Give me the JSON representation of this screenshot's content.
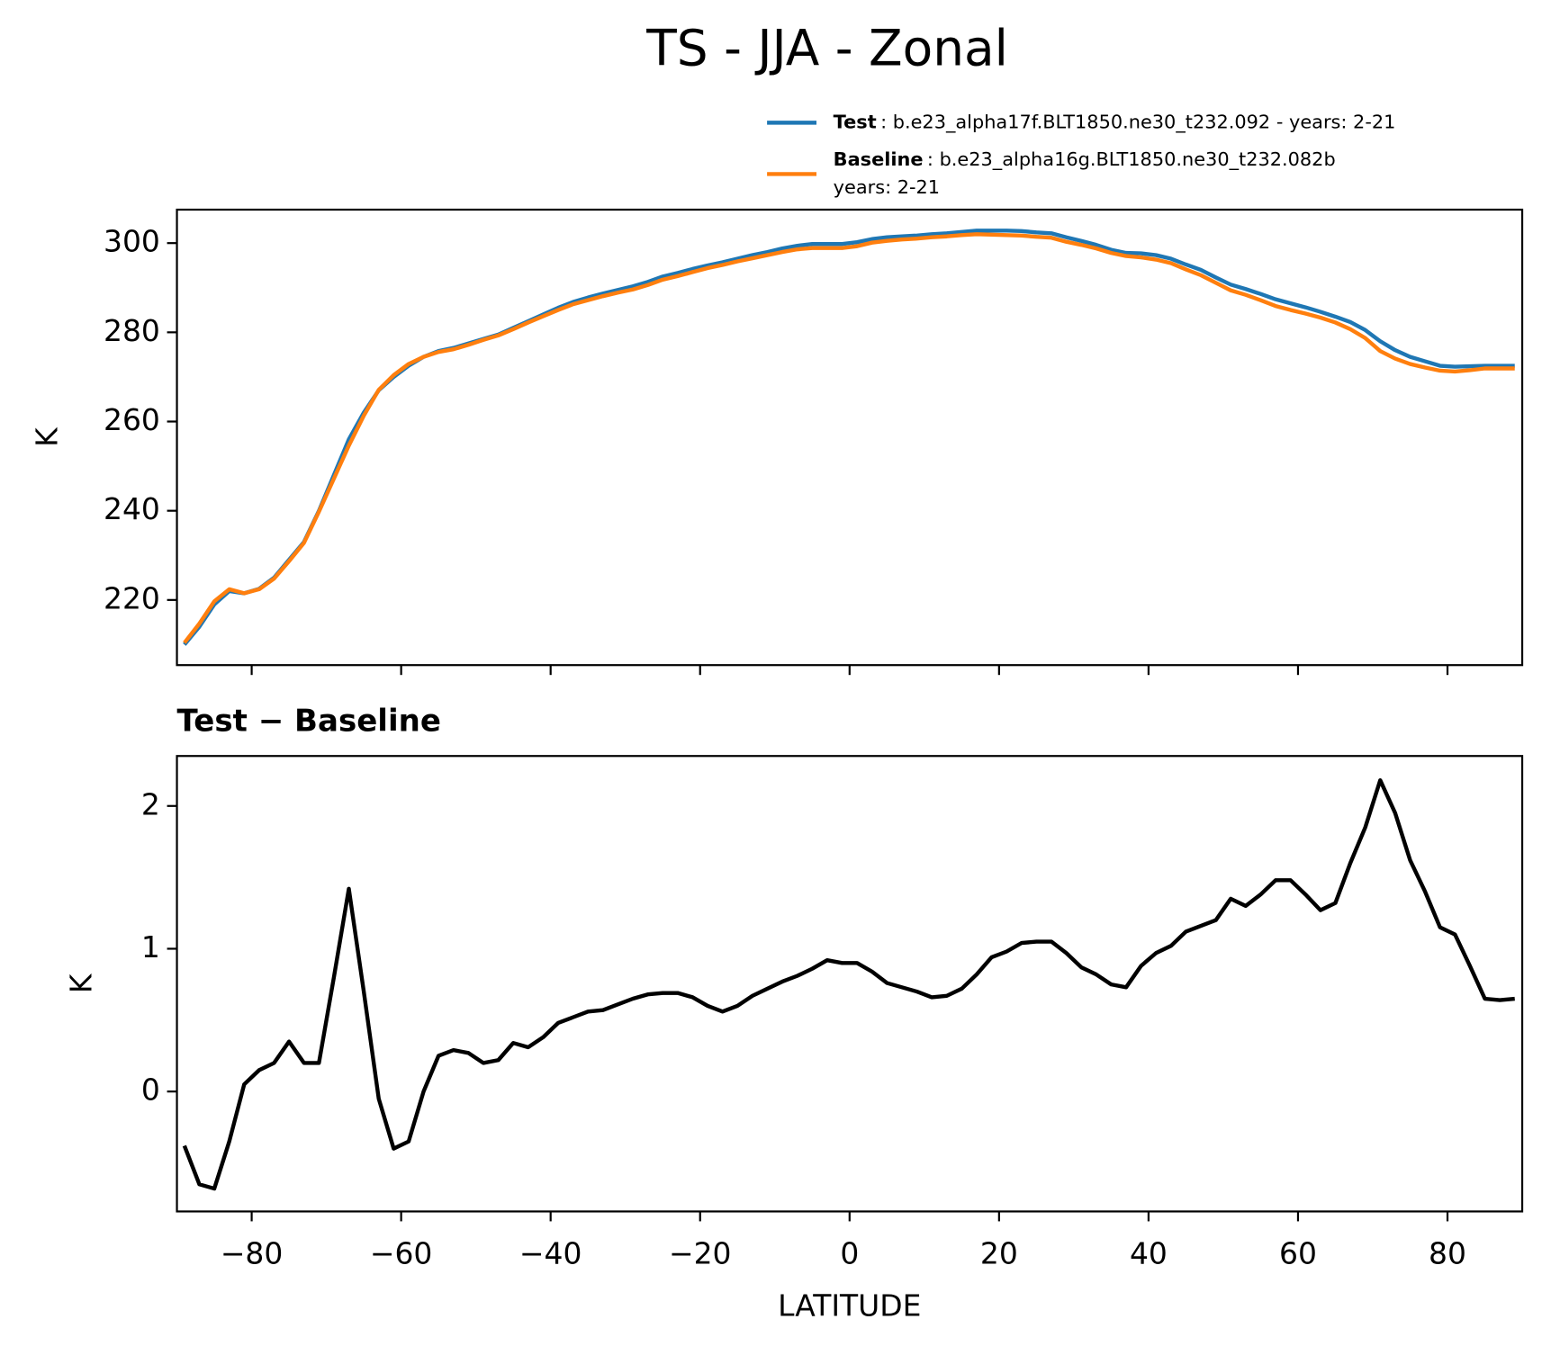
{
  "title": "TS - JJA - Zonal",
  "chart_data": [
    {
      "type": "line",
      "ylabel": "K",
      "x": [
        -89,
        -87,
        -85,
        -83,
        -81,
        -79,
        -77,
        -75,
        -73,
        -71,
        -69,
        -67,
        -65,
        -63,
        -61,
        -59,
        -57,
        -55,
        -53,
        -51,
        -49,
        -47,
        -45,
        -43,
        -41,
        -39,
        -37,
        -35,
        -33,
        -31,
        -29,
        -27,
        -25,
        -23,
        -21,
        -19,
        -17,
        -15,
        -13,
        -11,
        -9,
        -7,
        -5,
        -3,
        -1,
        1,
        3,
        5,
        7,
        9,
        11,
        13,
        15,
        17,
        19,
        21,
        23,
        25,
        27,
        29,
        31,
        33,
        35,
        37,
        39,
        41,
        43,
        45,
        47,
        49,
        51,
        53,
        55,
        57,
        59,
        61,
        63,
        65,
        67,
        69,
        71,
        73,
        75,
        77,
        79,
        81,
        83,
        85,
        87,
        89
      ],
      "xlim": [
        -90,
        90
      ],
      "xticks": [
        -80,
        -60,
        -40,
        -20,
        0,
        20,
        40,
        60,
        80
      ],
      "ylim": [
        205.4,
        307.5
      ],
      "yticks": [
        220,
        240,
        260,
        280,
        300
      ],
      "legend": "upper right",
      "series": [
        {
          "name": "Test",
          "description": [
            ": b.e23_alpha17f.BLT1850.ne30_t232.092 - years: 2-21"
          ],
          "color": "#1f77b4",
          "values": [
            210,
            214,
            219,
            222,
            221.5,
            222.5,
            225,
            229,
            233,
            240,
            248,
            256,
            262,
            267,
            270,
            272.5,
            274.5,
            275.8,
            276.5,
            277.5,
            278.5,
            279.5,
            281,
            282.5,
            284,
            285.5,
            286.8,
            287.8,
            288.7,
            289.5,
            290.3,
            291.3,
            292.5,
            293.3,
            294.2,
            295,
            295.7,
            296.5,
            297.3,
            298,
            298.8,
            299.4,
            299.8,
            299.8,
            299.8,
            300.2,
            300.9,
            301.3,
            301.5,
            301.7,
            302,
            302.2,
            302.5,
            302.8,
            302.8,
            302.8,
            302.7,
            302.4,
            302.2,
            301.3,
            300.5,
            299.6,
            298.5,
            297.8,
            297.7,
            297.3,
            296.5,
            295.2,
            294,
            292.3,
            290.7,
            289.7,
            288.6,
            287.4,
            286.5,
            285.6,
            284.6,
            283.5,
            282.3,
            280.5,
            278,
            276,
            274.5,
            273.5,
            272.5,
            272.3,
            272.4,
            272.5,
            272.5,
            272.5
          ]
        },
        {
          "name": "Baseline",
          "description": [
            ": b.e23_alpha16g.BLT1850.ne30_t232.082b",
            "years: 2-21"
          ],
          "color": "#ff7f0e",
          "values": [
            210.4,
            214.7,
            219.7,
            222.4,
            221.5,
            222.4,
            224.8,
            228.7,
            232.8,
            239.8,
            247.2,
            254.6,
            261.3,
            267.1,
            270.4,
            272.9,
            274.5,
            275.6,
            276.2,
            277.2,
            278.3,
            279.3,
            280.7,
            282.2,
            283.6,
            285.0,
            286.3,
            287.2,
            288.1,
            288.9,
            289.6,
            290.6,
            291.8,
            292.6,
            293.5,
            294.4,
            295.1,
            295.9,
            296.6,
            297.3,
            298.0,
            298.6,
            298.9,
            298.9,
            298.9,
            299.3,
            300.1,
            300.5,
            300.8,
            301.0,
            301.3,
            301.5,
            301.8,
            302.0,
            301.9,
            301.8,
            301.7,
            301.4,
            301.2,
            300.3,
            299.6,
            298.8,
            297.8,
            297.1,
            296.8,
            296.3,
            295.5,
            294.1,
            292.8,
            291.1,
            289.4,
            288.4,
            287.2,
            285.9,
            285.0,
            284.2,
            283.3,
            282.2,
            280.7,
            278.7,
            275.8,
            274.1,
            272.9,
            272.1,
            271.4,
            271.2,
            271.5,
            271.9,
            271.9,
            271.9
          ]
        }
      ]
    },
    {
      "type": "line",
      "title": "Test − Baseline",
      "xlabel": "LATITUDE",
      "ylabel": "K",
      "x": [
        -89,
        -87,
        -85,
        -83,
        -81,
        -79,
        -77,
        -75,
        -73,
        -71,
        -69,
        -67,
        -65,
        -63,
        -61,
        -59,
        -57,
        -55,
        -53,
        -51,
        -49,
        -47,
        -45,
        -43,
        -41,
        -39,
        -37,
        -35,
        -33,
        -31,
        -29,
        -27,
        -25,
        -23,
        -21,
        -19,
        -17,
        -15,
        -13,
        -11,
        -9,
        -7,
        -5,
        -3,
        -1,
        1,
        3,
        5,
        7,
        9,
        11,
        13,
        15,
        17,
        19,
        21,
        23,
        25,
        27,
        29,
        31,
        33,
        35,
        37,
        39,
        41,
        43,
        45,
        47,
        49,
        51,
        53,
        55,
        57,
        59,
        61,
        63,
        65,
        67,
        69,
        71,
        73,
        75,
        77,
        79,
        81,
        83,
        85,
        87,
        89
      ],
      "xlim": [
        -90,
        90
      ],
      "xticks": [
        {
          "value": -80,
          "label": "−80"
        },
        {
          "value": -60,
          "label": "−60"
        },
        {
          "value": -40,
          "label": "−40"
        },
        {
          "value": -20,
          "label": "−20"
        },
        0,
        20,
        40,
        60,
        80
      ],
      "ylim": [
        -0.84,
        2.35
      ],
      "yticks": [
        0,
        1,
        2
      ],
      "series": [
        {
          "color": "#000000",
          "values": [
            -0.38,
            -0.65,
            -0.68,
            -0.35,
            0.05,
            0.15,
            0.2,
            0.35,
            0.2,
            0.2,
            0.8,
            1.42,
            0.7,
            -0.05,
            -0.4,
            -0.35,
            0.0,
            0.25,
            0.29,
            0.27,
            0.2,
            0.22,
            0.34,
            0.31,
            0.38,
            0.48,
            0.52,
            0.56,
            0.57,
            0.61,
            0.65,
            0.68,
            0.69,
            0.69,
            0.66,
            0.6,
            0.56,
            0.6,
            0.67,
            0.72,
            0.77,
            0.81,
            0.86,
            0.92,
            0.9,
            0.9,
            0.84,
            0.76,
            0.73,
            0.7,
            0.66,
            0.67,
            0.72,
            0.82,
            0.94,
            0.98,
            1.04,
            1.05,
            1.05,
            0.97,
            0.87,
            0.82,
            0.75,
            0.73,
            0.88,
            0.97,
            1.02,
            1.12,
            1.16,
            1.2,
            1.35,
            1.3,
            1.38,
            1.48,
            1.48,
            1.38,
            1.27,
            1.32,
            1.6,
            1.85,
            2.18,
            1.95,
            1.62,
            1.4,
            1.15,
            1.1,
            0.88,
            0.65,
            0.64,
            0.65
          ]
        }
      ]
    }
  ]
}
